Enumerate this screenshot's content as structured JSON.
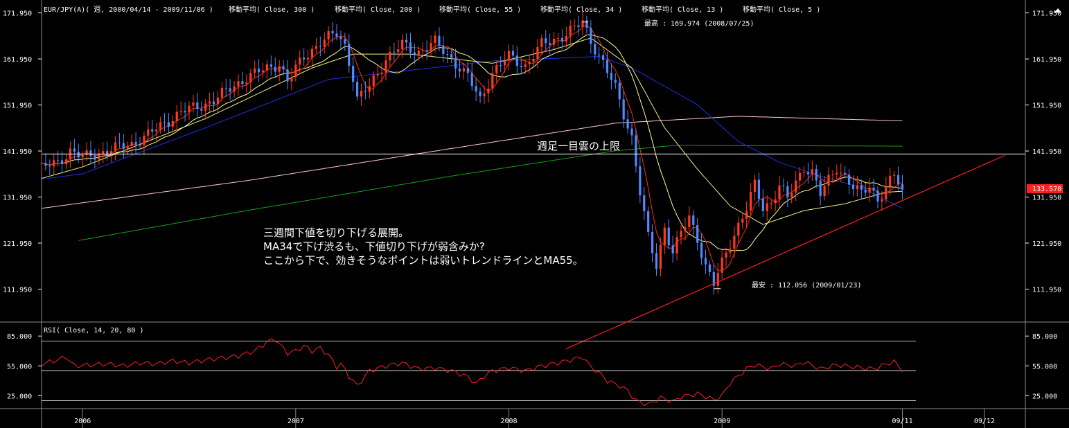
{
  "header": {
    "symbol": "EUR/JPY(A)( 週, 2000/04/14 - 2009/11/06 )",
    "ma_labels": [
      "移動平均( Close, 300 )",
      "移動平均( Close, 200 )",
      "移動平均( Close, 55 )",
      "移動平均( Close, 34 )",
      "移動平均( Close, 13 )",
      "移動平均( Close, 5 )"
    ]
  },
  "colors": {
    "up": "#ff3b1f",
    "down": "#4f8bff",
    "ma300": "#ffc8c8",
    "ma200": "#19a019",
    "ma55": "#1e2fe6",
    "ma34": "#f0f08c",
    "ma13": "#ffff96",
    "ma5": "#ff2a12",
    "trend": "#ff1e1e",
    "rsi": "#ff1e1e",
    "hline": "#ffffff",
    "price_tag_bg": "#ff2020",
    "grid_border": "#8a8a8a"
  },
  "annotations": {
    "high_label": "最高 : 169.974 (2008/07/25)",
    "low_label": "最安 : 112.056 (2009/01/23)",
    "cloud_label": "週足一目雲の上限",
    "comment_lines": [
      "三週間下値を切り下げる展開。",
      "MA34で下げ渋るも、下値切り下げが弱含みか?",
      "ここから下で、効きそうなポイントは弱いトレンドラインとMA55。"
    ],
    "current_price": "133.570"
  },
  "rsi_panel": {
    "title": "RSI( Close, 14, 20, 80 )"
  },
  "chart_data": {
    "type": "candlestick",
    "price_axis": {
      "ticks": [
        "171.950",
        "161.950",
        "151.950",
        "141.950",
        "131.950",
        "121.950",
        "111.950"
      ],
      "tick_values": [
        171.95,
        161.95,
        151.95,
        141.95,
        131.95,
        121.95,
        111.95
      ],
      "ylim": [
        104.8,
        174.0
      ]
    },
    "rsi_axis": {
      "ticks": [
        "85.000",
        "55.000",
        "25.000"
      ],
      "tick_values": [
        85,
        55,
        25
      ],
      "ylim": [
        12,
        97
      ],
      "levels": [
        80,
        50,
        20
      ]
    },
    "x_axis": {
      "labels": [
        "2006",
        "2007",
        "2008",
        "2009",
        "09/11",
        "09/12"
      ],
      "label_weeks": [
        0,
        52,
        104,
        156,
        200,
        220
      ],
      "range_weeks": [
        -10,
        230
      ]
    },
    "ohlc_keyframes": [
      [
        -10,
        138.2
      ],
      [
        -6,
        139.5
      ],
      [
        -3,
        142.0
      ],
      [
        0,
        140.5
      ],
      [
        4,
        141.5
      ],
      [
        8,
        142.5
      ],
      [
        12,
        143.5
      ],
      [
        16,
        145.5
      ],
      [
        20,
        148.0
      ],
      [
        24,
        150.5
      ],
      [
        28,
        151.5
      ],
      [
        32,
        153.0
      ],
      [
        36,
        155.5
      ],
      [
        40,
        158.0
      ],
      [
        44,
        159.5
      ],
      [
        48,
        161.0
      ],
      [
        50,
        157.0
      ],
      [
        54,
        162.5
      ],
      [
        58,
        165.5
      ],
      [
        62,
        167.5
      ],
      [
        64,
        165.0
      ],
      [
        66,
        158.0
      ],
      [
        67,
        153.0
      ],
      [
        70,
        156.0
      ],
      [
        74,
        162.0
      ],
      [
        78,
        165.0
      ],
      [
        82,
        163.5
      ],
      [
        86,
        165.5
      ],
      [
        90,
        162.0
      ],
      [
        94,
        158.0
      ],
      [
        97,
        153.0
      ],
      [
        100,
        159.0
      ],
      [
        104,
        162.5
      ],
      [
        108,
        160.5
      ],
      [
        112,
        165.0
      ],
      [
        116,
        166.5
      ],
      [
        120,
        168.5
      ],
      [
        122,
        170.0
      ],
      [
        124,
        166.0
      ],
      [
        127,
        161.0
      ],
      [
        130,
        155.5
      ],
      [
        132,
        150.0
      ],
      [
        134,
        145.0
      ],
      [
        136,
        133.0
      ],
      [
        138,
        123.0
      ],
      [
        140,
        117.0
      ],
      [
        142,
        125.5
      ],
      [
        144,
        120.0
      ],
      [
        146,
        124.0
      ],
      [
        148,
        127.5
      ],
      [
        150,
        123.0
      ],
      [
        152,
        117.0
      ],
      [
        154,
        113.0
      ],
      [
        156,
        117.5
      ],
      [
        158,
        122.0
      ],
      [
        160,
        126.0
      ],
      [
        162,
        129.5
      ],
      [
        164,
        134.5
      ],
      [
        166,
        129.5
      ],
      [
        168,
        131.0
      ],
      [
        170,
        134.5
      ],
      [
        172,
        131.5
      ],
      [
        174,
        135.0
      ],
      [
        176,
        138.5
      ],
      [
        178,
        137.5
      ],
      [
        180,
        132.5
      ],
      [
        182,
        135.5
      ],
      [
        184,
        138.5
      ],
      [
        186,
        136.5
      ],
      [
        188,
        134.0
      ],
      [
        190,
        132.5
      ],
      [
        192,
        134.5
      ],
      [
        194,
        131.5
      ],
      [
        196,
        134.0
      ],
      [
        198,
        136.5
      ],
      [
        200,
        133.57
      ]
    ],
    "ma_keyframes": {
      "ma300": [
        [
          -10,
          129.5
        ],
        [
          40,
          135.5
        ],
        [
          90,
          142.5
        ],
        [
          130,
          148.0
        ],
        [
          160,
          149.5
        ],
        [
          200,
          148.5
        ]
      ],
      "ma200": [
        [
          -1,
          122.5
        ],
        [
          40,
          129.0
        ],
        [
          90,
          136.5
        ],
        [
          130,
          142.0
        ],
        [
          145,
          143.2
        ],
        [
          200,
          143.0
        ]
      ],
      "ma55": [
        [
          -10,
          135.8
        ],
        [
          0,
          137.0
        ],
        [
          30,
          147.0
        ],
        [
          60,
          157.5
        ],
        [
          80,
          159.5
        ],
        [
          100,
          161.5
        ],
        [
          126,
          162.5
        ],
        [
          134,
          160.0
        ],
        [
          150,
          152.0
        ],
        [
          160,
          144.0
        ],
        [
          170,
          139.5
        ],
        [
          180,
          136.5
        ],
        [
          190,
          134.0
        ],
        [
          200,
          129.5
        ]
      ],
      "ma34": [
        [
          -10,
          136.0
        ],
        [
          0,
          138.5
        ],
        [
          30,
          149.0
        ],
        [
          56,
          160.0
        ],
        [
          66,
          163.0
        ],
        [
          80,
          163.0
        ],
        [
          100,
          161.0
        ],
        [
          115,
          164.0
        ],
        [
          124,
          166.5
        ],
        [
          134,
          160.0
        ],
        [
          142,
          147.0
        ],
        [
          150,
          138.0
        ],
        [
          158,
          130.0
        ],
        [
          166,
          126.0
        ],
        [
          176,
          129.0
        ],
        [
          186,
          130.5
        ],
        [
          196,
          133.0
        ],
        [
          200,
          133.2
        ]
      ]
    },
    "rsi_keyframes": [
      [
        -10,
        57
      ],
      [
        -7,
        60
      ],
      [
        -4,
        64
      ],
      [
        -2,
        55
      ],
      [
        2,
        56
      ],
      [
        6,
        57
      ],
      [
        10,
        55
      ],
      [
        14,
        58
      ],
      [
        18,
        57
      ],
      [
        22,
        60
      ],
      [
        26,
        58
      ],
      [
        30,
        61
      ],
      [
        34,
        63
      ],
      [
        38,
        65
      ],
      [
        42,
        70
      ],
      [
        45,
        79
      ],
      [
        47,
        82
      ],
      [
        48,
        77
      ],
      [
        50,
        68
      ],
      [
        52,
        70
      ],
      [
        54,
        75
      ],
      [
        56,
        70
      ],
      [
        58,
        73
      ],
      [
        60,
        66
      ],
      [
        62,
        54
      ],
      [
        63,
        57
      ],
      [
        65,
        45
      ],
      [
        67,
        35
      ],
      [
        70,
        50
      ],
      [
        74,
        55
      ],
      [
        78,
        58
      ],
      [
        82,
        52
      ],
      [
        86,
        53
      ],
      [
        90,
        50
      ],
      [
        94,
        44
      ],
      [
        96,
        37
      ],
      [
        98,
        45
      ],
      [
        100,
        50
      ],
      [
        104,
        53
      ],
      [
        108,
        50
      ],
      [
        112,
        55
      ],
      [
        116,
        58
      ],
      [
        120,
        62
      ],
      [
        122,
        64
      ],
      [
        124,
        54
      ],
      [
        126,
        48
      ],
      [
        128,
        40
      ],
      [
        131,
        35
      ],
      [
        133,
        30
      ],
      [
        135,
        20
      ],
      [
        138,
        16
      ],
      [
        141,
        23
      ],
      [
        144,
        19
      ],
      [
        146,
        24
      ],
      [
        150,
        27
      ],
      [
        154,
        21
      ],
      [
        156,
        25
      ],
      [
        158,
        38
      ],
      [
        160,
        45
      ],
      [
        162,
        52
      ],
      [
        164,
        56
      ],
      [
        168,
        52
      ],
      [
        170,
        57
      ],
      [
        174,
        55
      ],
      [
        176,
        59
      ],
      [
        180,
        52
      ],
      [
        184,
        56
      ],
      [
        188,
        54
      ],
      [
        192,
        52
      ],
      [
        194,
        53
      ],
      [
        196,
        57
      ],
      [
        198,
        59
      ],
      [
        200,
        51
      ]
    ],
    "trendline": {
      "from": [
        118,
        99.0
      ],
      "to": [
        225,
        141.0
      ]
    },
    "horizontal_line": 141.3,
    "high": {
      "week": 122,
      "value": 169.974
    },
    "low": {
      "week": 154,
      "value": 112.056
    }
  }
}
